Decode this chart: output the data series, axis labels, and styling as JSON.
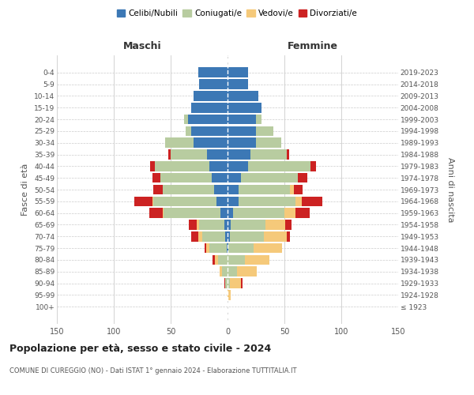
{
  "age_groups": [
    "100+",
    "95-99",
    "90-94",
    "85-89",
    "80-84",
    "75-79",
    "70-74",
    "65-69",
    "60-64",
    "55-59",
    "50-54",
    "45-49",
    "40-44",
    "35-39",
    "30-34",
    "25-29",
    "20-24",
    "15-19",
    "10-14",
    "5-9",
    "0-4"
  ],
  "birth_years": [
    "≤ 1923",
    "1924-1928",
    "1929-1933",
    "1934-1938",
    "1939-1943",
    "1944-1948",
    "1949-1953",
    "1954-1958",
    "1959-1963",
    "1964-1968",
    "1969-1973",
    "1974-1978",
    "1979-1983",
    "1984-1988",
    "1989-1993",
    "1994-1998",
    "1999-2003",
    "2004-2008",
    "2009-2013",
    "2014-2018",
    "2019-2023"
  ],
  "males": {
    "celibi": [
      0,
      0,
      0,
      0,
      0,
      1,
      2,
      3,
      6,
      10,
      12,
      14,
      16,
      18,
      30,
      32,
      35,
      32,
      30,
      25,
      26
    ],
    "coniugati": [
      0,
      0,
      2,
      5,
      8,
      15,
      20,
      22,
      50,
      55,
      45,
      45,
      48,
      32,
      25,
      5,
      3,
      0,
      0,
      0,
      0
    ],
    "vedovi": [
      0,
      0,
      0,
      2,
      3,
      3,
      4,
      2,
      1,
      1,
      0,
      0,
      0,
      0,
      0,
      0,
      0,
      0,
      0,
      0,
      0
    ],
    "divorziati": [
      0,
      0,
      1,
      0,
      2,
      1,
      6,
      7,
      12,
      16,
      8,
      7,
      4,
      2,
      0,
      0,
      0,
      0,
      0,
      0,
      0
    ]
  },
  "females": {
    "nubili": [
      0,
      0,
      0,
      0,
      0,
      1,
      2,
      3,
      5,
      10,
      10,
      12,
      18,
      20,
      25,
      25,
      25,
      30,
      27,
      18,
      18
    ],
    "coniugate": [
      0,
      0,
      2,
      8,
      15,
      22,
      30,
      30,
      45,
      50,
      45,
      50,
      55,
      32,
      22,
      15,
      5,
      0,
      0,
      0,
      0
    ],
    "vedove": [
      0,
      3,
      10,
      18,
      22,
      25,
      20,
      18,
      10,
      5,
      3,
      0,
      0,
      0,
      0,
      0,
      0,
      0,
      0,
      0,
      0
    ],
    "divorziate": [
      0,
      0,
      1,
      0,
      0,
      0,
      3,
      5,
      12,
      18,
      8,
      8,
      5,
      2,
      0,
      0,
      0,
      0,
      0,
      0,
      0
    ]
  },
  "colors": {
    "celibi": "#3c78b5",
    "coniugati": "#b8cca0",
    "vedovi": "#f5c97a",
    "divorziati": "#cc2222"
  },
  "xlim": [
    -150,
    150
  ],
  "xticks": [
    -150,
    -100,
    -50,
    0,
    50,
    100,
    150
  ],
  "xticklabels": [
    "150",
    "100",
    "50",
    "0",
    "50",
    "100",
    "150"
  ],
  "title": "Popolazione per età, sesso e stato civile - 2024",
  "subtitle": "COMUNE DI CUREGGIO (NO) - Dati ISTAT 1° gennaio 2024 - Elaborazione TUTTITALIA.IT",
  "ylabel_left": "Fasce di età",
  "ylabel_right": "Anni di nascita",
  "legend_labels": [
    "Celibi/Nubili",
    "Coniugati/e",
    "Vedovi/e",
    "Divorziati/e"
  ],
  "maschi_label": "Maschi",
  "femmine_label": "Femmine",
  "background_color": "#ffffff",
  "grid_color": "#cccccc"
}
